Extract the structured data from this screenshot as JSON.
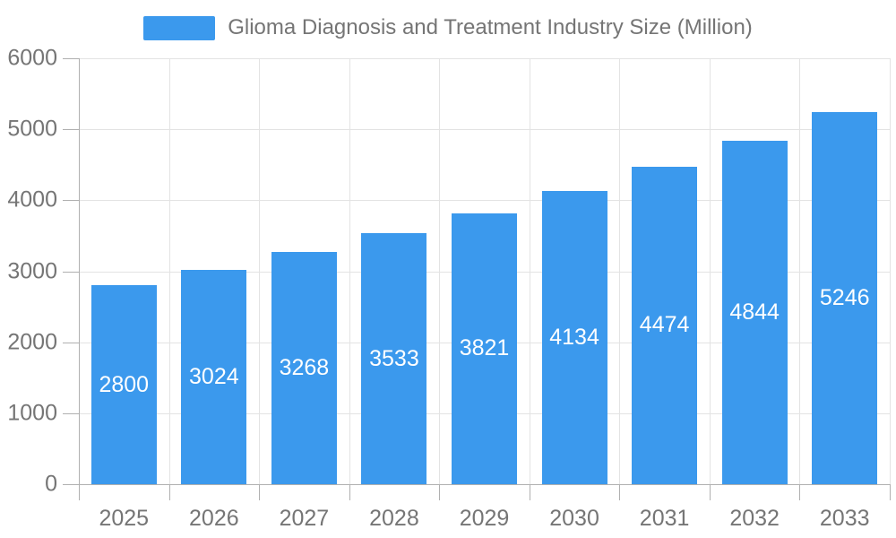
{
  "legend": {
    "label": "Glioma Diagnosis and Treatment Industry Size (Million)",
    "swatch_color": "#3B99ED"
  },
  "chart_data": {
    "type": "bar",
    "title": "Glioma Diagnosis and Treatment Industry Size (Million)",
    "categories": [
      "2025",
      "2026",
      "2027",
      "2028",
      "2029",
      "2030",
      "2031",
      "2032",
      "2033"
    ],
    "values": [
      2800,
      3024,
      3268,
      3533,
      3821,
      4134,
      4474,
      4844,
      5246
    ],
    "xlabel": "",
    "ylabel": "",
    "ylim": [
      0,
      6000
    ],
    "yticks": [
      0,
      1000,
      2000,
      3000,
      4000,
      5000,
      6000
    ],
    "grid": true,
    "legend_position": "top",
    "bar_label_position": "inside-center",
    "colors": {
      "bar": "#3B99ED",
      "bar_label": "#ffffff",
      "axis_text": "#757575",
      "axis_line": "#b0b0b0",
      "gridline": "#e3e3e3",
      "background": "#ffffff"
    }
  }
}
